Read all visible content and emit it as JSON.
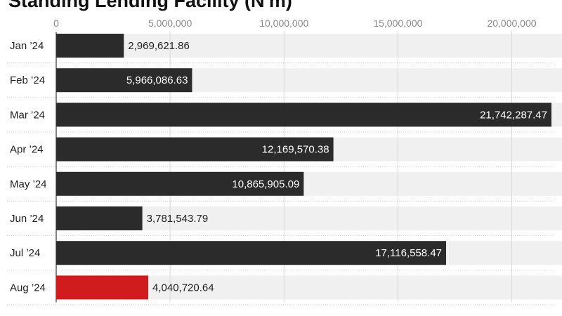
{
  "chart_data": {
    "type": "bar",
    "orientation": "horizontal",
    "title": "Standing Lending Facility (N'm)",
    "categories": [
      "Jan ’24",
      "Feb ’24",
      "Mar ’24",
      "Apr ’24",
      "May ’24",
      "Jun ’24",
      "Jul ’24",
      "Aug ’24"
    ],
    "values": [
      2969621.86,
      5966086.63,
      21742287.47,
      12169570.38,
      10865905.09,
      3781543.79,
      17116558.47,
      4040720.64
    ],
    "value_labels": [
      "2,969,621.86",
      "5,966,086.63",
      "21,742,287.47",
      "12,169,570.38",
      "10,865,905.09",
      "3,781,543.79",
      "17,116,558.47",
      "4,040,720.64"
    ],
    "x_ticks": [
      0,
      5000000,
      10000000,
      15000000,
      20000000
    ],
    "x_tick_labels": [
      "0",
      "5,000,000",
      "10,000,000",
      "15,000,000",
      "20,000,000"
    ],
    "xlim": [
      0,
      21742287.47
    ],
    "xlabel": "",
    "ylabel": "",
    "grid": true,
    "legend": "none",
    "colors": {
      "bar": "#2b2b2b",
      "highlight": "#d01c1c",
      "track": "#f0f0f0",
      "grid": "#d9d9d9",
      "tick_text": "#8a8a8a"
    },
    "highlight_index": 7
  }
}
